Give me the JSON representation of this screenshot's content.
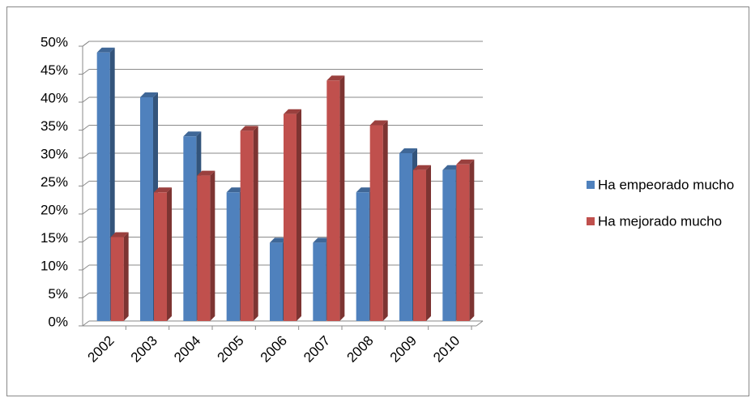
{
  "chart_data": {
    "type": "bar",
    "categories": [
      "2002",
      "2003",
      "2004",
      "2005",
      "2006",
      "2007",
      "2008",
      "2009",
      "2010"
    ],
    "series": [
      {
        "name": "Ha empeorado mucho",
        "color": "#4f81bd",
        "values": [
          48,
          40,
          33,
          23,
          14,
          14,
          23,
          30,
          27
        ]
      },
      {
        "name": "Ha mejorado mucho",
        "color": "#c0504d",
        "values": [
          15,
          23,
          26,
          34,
          37,
          43,
          35,
          27,
          28
        ]
      }
    ],
    "ylim": [
      0,
      50
    ],
    "yticks": [
      {
        "value": 0,
        "label": "0%"
      },
      {
        "value": 5,
        "label": "5%"
      },
      {
        "value": 10,
        "label": "10%"
      },
      {
        "value": 15,
        "label": "15%"
      },
      {
        "value": 20,
        "label": "20%"
      },
      {
        "value": 25,
        "label": "25%"
      },
      {
        "value": 30,
        "label": "30%"
      },
      {
        "value": 35,
        "label": "35%"
      },
      {
        "value": 40,
        "label": "40%"
      },
      {
        "value": 45,
        "label": "45%"
      },
      {
        "value": 50,
        "label": "50%"
      }
    ],
    "grid": true,
    "legend": "right"
  }
}
